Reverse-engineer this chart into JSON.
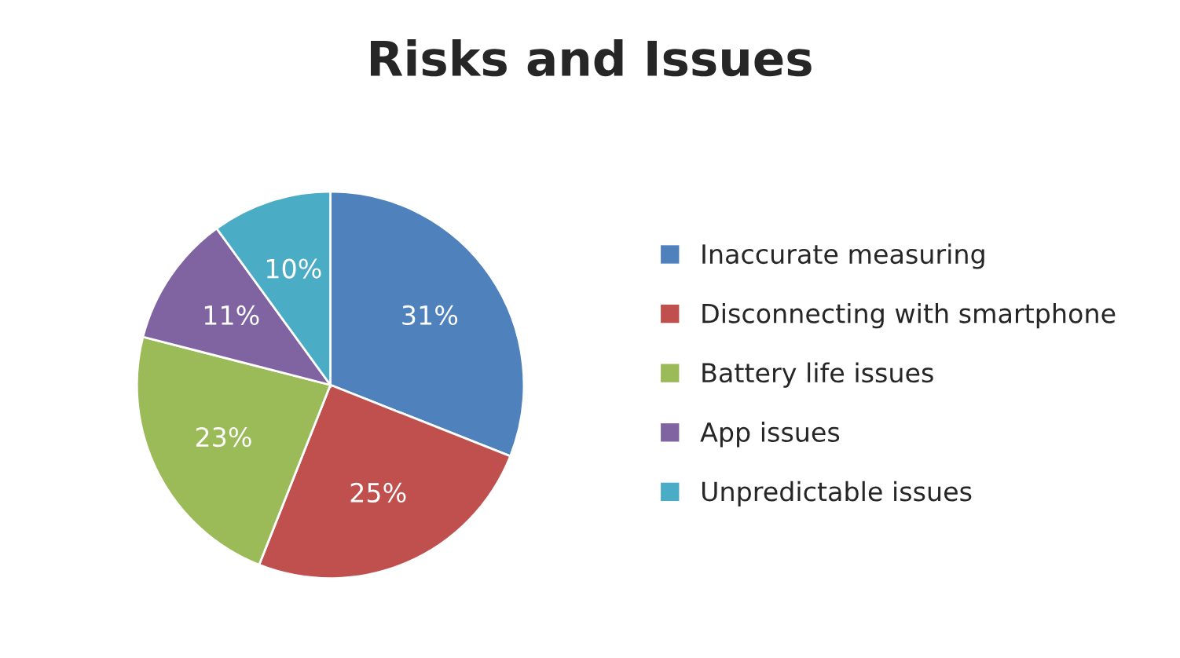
{
  "chart_data": {
    "type": "pie",
    "title": "Risks and Issues",
    "categories": [
      "Inaccurate measuring",
      "Disconnecting with smartphone",
      "Battery life issues",
      "App issues",
      "Unpredictable issues"
    ],
    "values": [
      31,
      25,
      23,
      11,
      10
    ],
    "colors": [
      "#4f81bd",
      "#c0504d",
      "#9bbb59",
      "#8064a2",
      "#4bacc6"
    ],
    "value_labels": [
      "31%",
      "25%",
      "23%",
      "11%",
      "10%"
    ],
    "legend": "right"
  }
}
